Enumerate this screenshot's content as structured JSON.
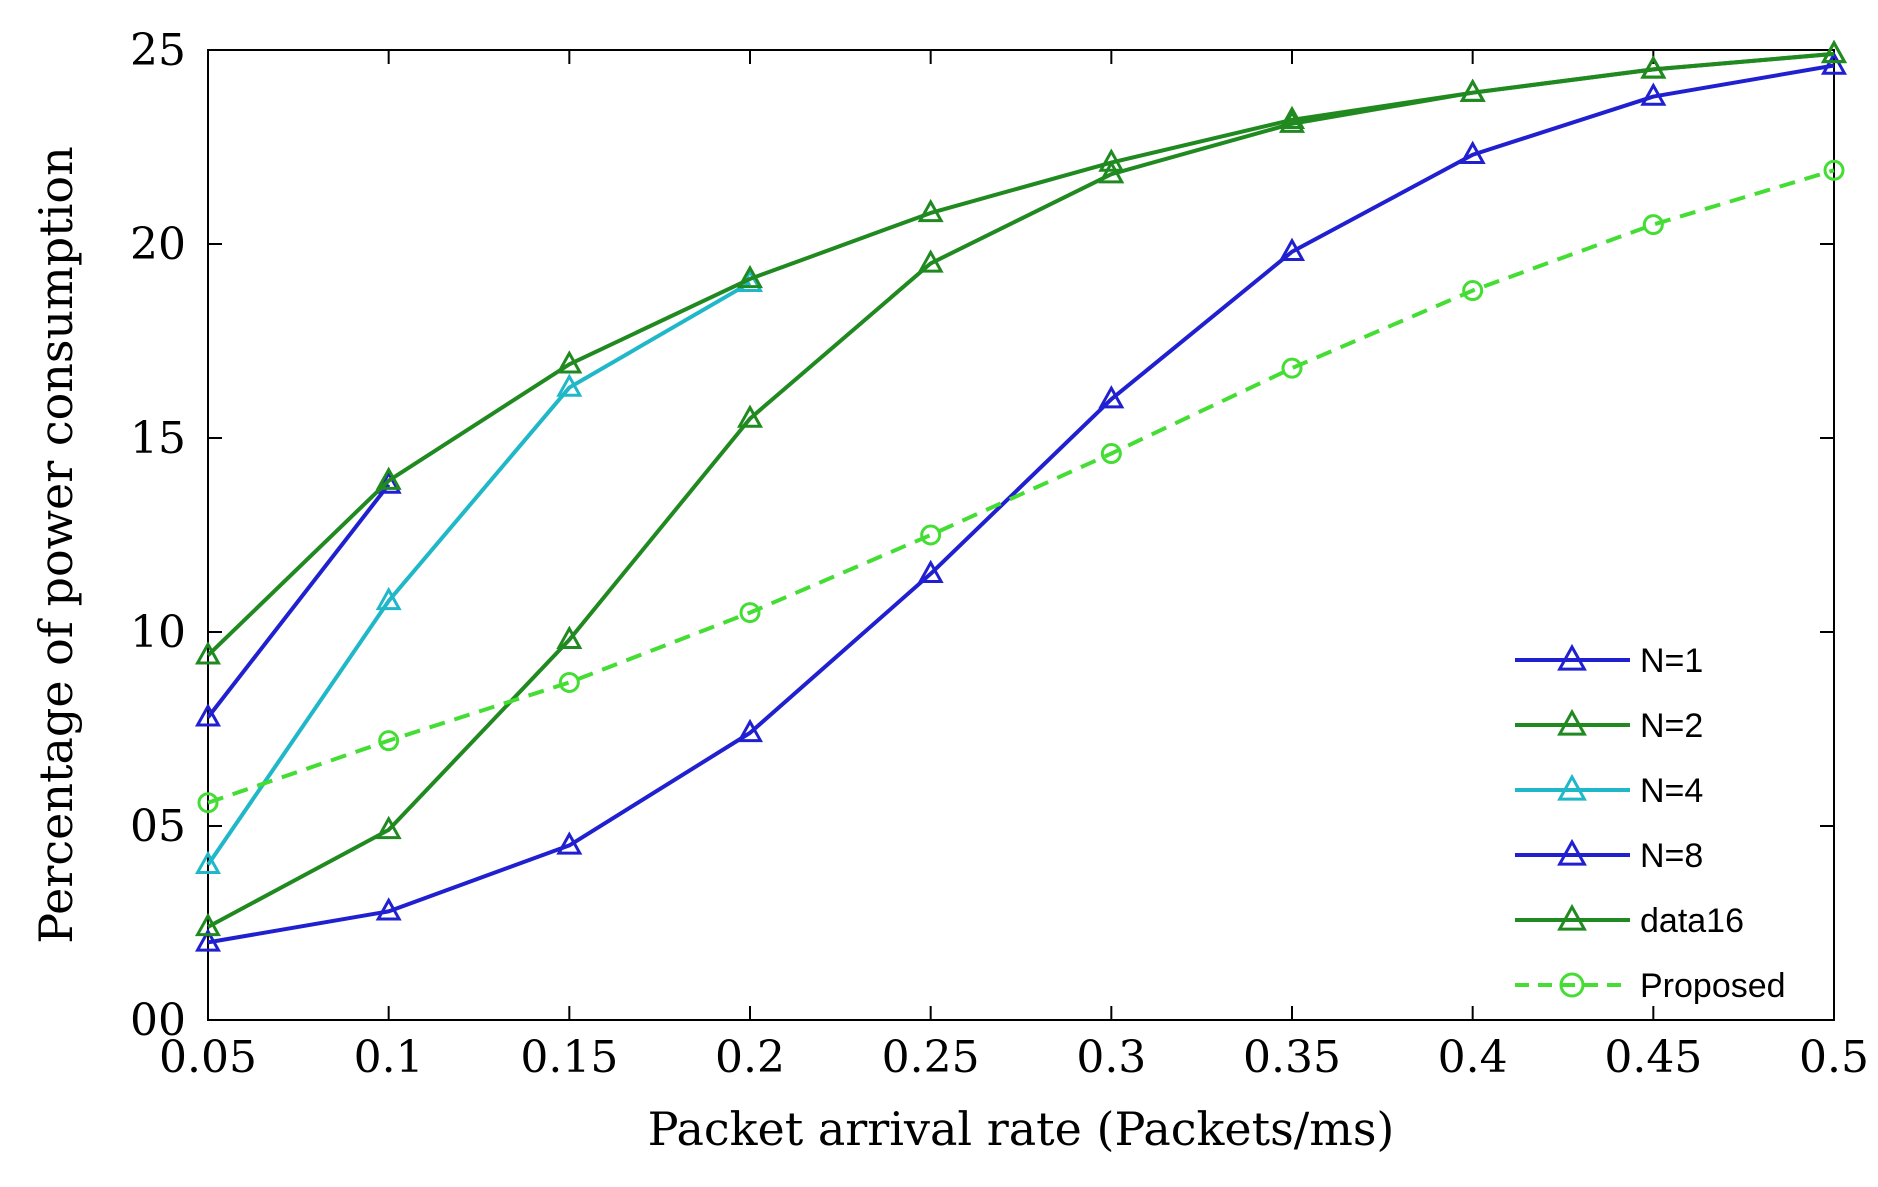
{
  "chart_data": {
    "type": "line",
    "title": "",
    "xlabel": "Packet arrival rate (Packets/ms)",
    "ylabel": "Percentage of power consumption",
    "xlim": [
      0.05,
      0.5
    ],
    "ylim": [
      0,
      25
    ],
    "x": [
      0.05,
      0.1,
      0.15,
      0.2,
      0.25,
      0.3,
      0.35,
      0.4,
      0.45,
      0.5
    ],
    "x_tick_labels": [
      "0.05",
      "0.1",
      "0.15",
      "0.2",
      "0.25",
      "0.3",
      "0.35",
      "0.4",
      "0.45",
      "0.5"
    ],
    "y_ticks": [
      0,
      5,
      10,
      15,
      20,
      25
    ],
    "y_tick_labels": [
      "00",
      "05",
      "10",
      "15",
      "20",
      "25"
    ],
    "grid": false,
    "legend_position": "bottom-right",
    "series": [
      {
        "name": "N=1",
        "color": "#2020d0",
        "marker": "triangle",
        "dashed": false,
        "values": [
          2.0,
          2.8,
          4.5,
          7.4,
          11.5,
          16.0,
          19.8,
          22.3,
          23.8,
          24.6
        ]
      },
      {
        "name": "N=2",
        "color": "#208a20",
        "marker": "triangle",
        "dashed": false,
        "values": [
          2.4,
          4.9,
          9.8,
          15.5,
          19.5,
          21.8,
          23.1,
          23.9,
          24.5,
          24.9
        ]
      },
      {
        "name": "N=4",
        "color": "#20b8c8",
        "marker": "triangle",
        "dashed": false,
        "values": [
          4.0,
          10.8,
          16.3,
          19.0,
          null,
          null,
          null,
          null,
          null,
          null
        ]
      },
      {
        "name": "N=8",
        "color": "#2020d0",
        "marker": "triangle",
        "dashed": false,
        "values": [
          7.8,
          13.8,
          null,
          null,
          null,
          null,
          null,
          null,
          null,
          null
        ]
      },
      {
        "name": "data16",
        "color": "#208a20",
        "marker": "triangle",
        "dashed": false,
        "values": [
          9.4,
          13.9,
          16.9,
          19.1,
          20.8,
          22.1,
          23.2,
          23.9,
          24.5,
          24.9
        ]
      },
      {
        "name": "Proposed",
        "color": "#44dd33",
        "marker": "circle",
        "dashed": true,
        "values": [
          5.6,
          7.2,
          8.7,
          10.5,
          12.5,
          14.6,
          16.8,
          18.8,
          20.5,
          21.9
        ]
      }
    ]
  }
}
